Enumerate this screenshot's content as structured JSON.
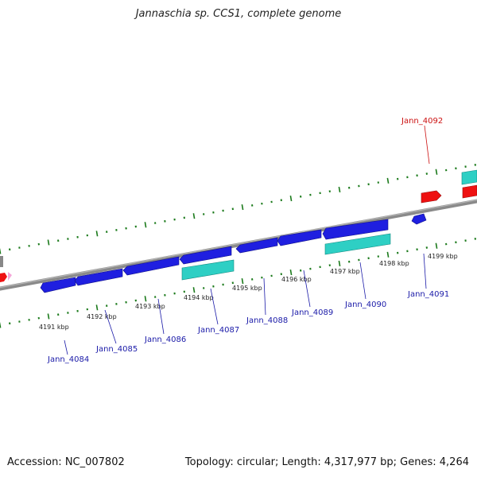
{
  "title": "Jannaschia sp. CCS1, complete genome",
  "footer": {
    "accession": "Accession: NC_007802",
    "summary": "Topology: circular; Length: 4,317,977 bp; Genes: 4,264"
  },
  "colors": {
    "background": "#ffffff",
    "backbone": "#8a8a8a",
    "tick": "#1b7a1b",
    "gene_forward": "#1f1fe0",
    "gene_feature": "#2ecfc4",
    "gene_highlight": "#ee1111",
    "label_normal": "#1a1aa8",
    "label_highlight": "#cc1111"
  },
  "scale": {
    "labels": [
      "4191 kbp",
      "4192 kbp",
      "4193 kbp",
      "4194 kbp",
      "4195 kbp",
      "4196 kbp",
      "4197 kbp",
      "4198 kbp",
      "4199 kbp"
    ]
  },
  "genes": [
    {
      "name": "Jann_4084",
      "color": "blue"
    },
    {
      "name": "Jann_4085",
      "color": "blue"
    },
    {
      "name": "Jann_4086",
      "color": "blue"
    },
    {
      "name": "Jann_4087",
      "color": "blue"
    },
    {
      "name": "Jann_4088",
      "color": "blue"
    },
    {
      "name": "Jann_4089",
      "color": "blue"
    },
    {
      "name": "Jann_4090",
      "color": "blue"
    },
    {
      "name": "Jann_4091",
      "color": "blue"
    },
    {
      "name": "Jann_4092",
      "color": "red"
    }
  ]
}
